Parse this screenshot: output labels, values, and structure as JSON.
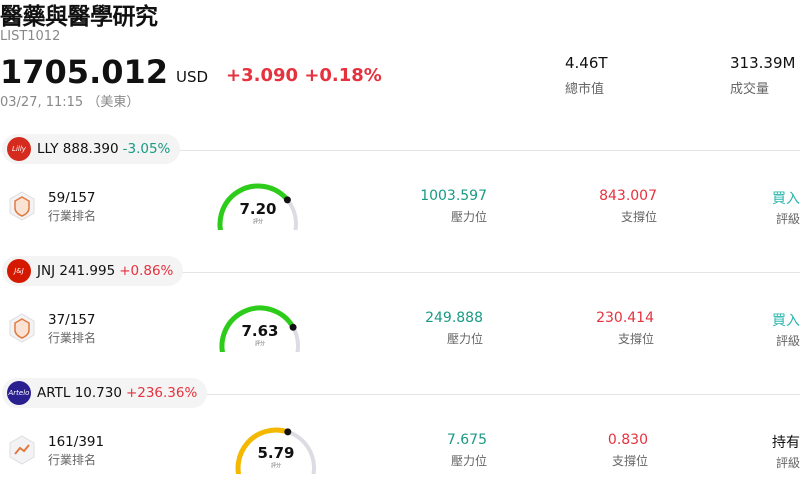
{
  "header": {
    "title": "醫藥與醫學研究",
    "code": "LIST1012",
    "price": "1705.012",
    "currency": "USD",
    "change": "+3.090",
    "change_pct": "+0.18%",
    "timestamp": "03/27, 11:15 （美東）"
  },
  "stats": [
    {
      "value": "4.46T",
      "label": "總市值"
    },
    {
      "value": "313.39M",
      "label": "成交量"
    }
  ],
  "colors": {
    "up": "#e5323e",
    "down": "#1a9a84",
    "buy": "#2ab5ad",
    "gauge_green": "#2ecc1a",
    "gauge_yellow": "#f5b800",
    "gauge_track": "#dcdce4"
  },
  "stocks": [
    {
      "ticker": "LLY",
      "price": "888.390",
      "pct": "-3.05%",
      "direction": "down",
      "logo_icon": "lilly-logo-icon",
      "logo_text": "Lilly",
      "logo_color": "#d52b1e",
      "rank": "59/157",
      "rank_label": "行業排名",
      "score": "7.20",
      "score_level": 0.72,
      "score_caption": "評分",
      "resistance": "1003.597",
      "resistance_label": "壓力位",
      "support": "843.007",
      "support_label": "支撐位",
      "rating": "買入",
      "rating_label": "評級",
      "rating_type": "buy"
    },
    {
      "ticker": "JNJ",
      "price": "241.995",
      "pct": "+0.86%",
      "direction": "up",
      "logo_icon": "jnj-logo-icon",
      "logo_text": "J&J",
      "logo_color": "#d51900",
      "rank": "37/157",
      "rank_label": "行業排名",
      "score": "7.63",
      "score_level": 0.763,
      "score_caption": "評分",
      "resistance": "249.888",
      "resistance_label": "壓力位",
      "support": "230.414",
      "support_label": "支撐位",
      "rating": "買入",
      "rating_label": "評級",
      "rating_type": "buy"
    },
    {
      "ticker": "ARTL",
      "price": "10.730",
      "pct": "+236.36%",
      "direction": "up",
      "logo_icon": "artelo-logo-icon",
      "logo_text": "Artelo",
      "logo_color": "#2a1f8f",
      "rank": "161/391",
      "rank_label": "行業排名",
      "score": "5.79",
      "score_level": 0.579,
      "score_caption": "評分",
      "resistance": "7.675",
      "resistance_label": "壓力位",
      "support": "0.830",
      "support_label": "支撐位",
      "rating": "持有",
      "rating_label": "評級",
      "rating_type": "hold"
    }
  ]
}
